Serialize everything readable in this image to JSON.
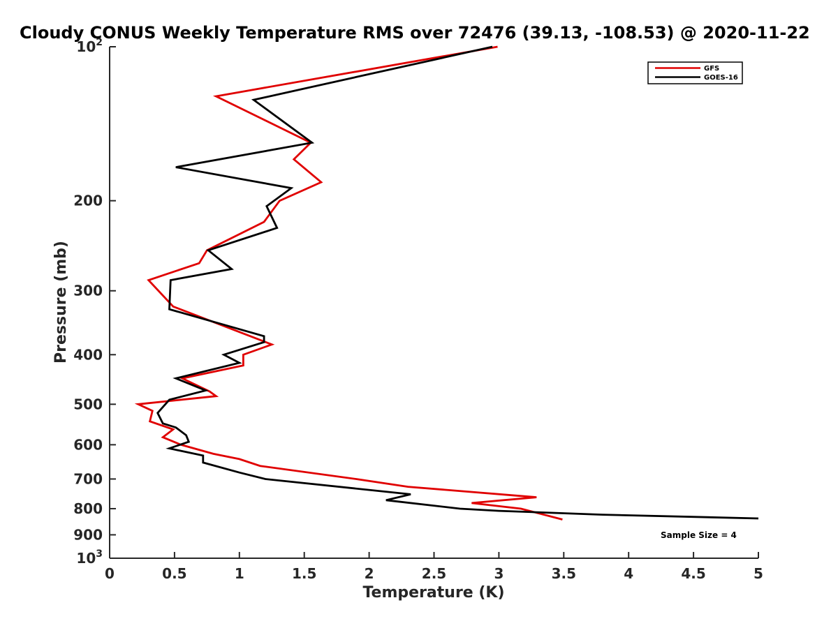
{
  "chart_data": {
    "type": "line",
    "title": "Cloudy CONUS Weekly Temperature RMS over 72476 (39.13, -108.53) @ 2020-11-22",
    "xlabel": "Temperature (K)",
    "ylabel": "Pressure (mb)",
    "xlim": [
      0,
      5
    ],
    "ylim": [
      100,
      1000
    ],
    "y_scale": "log",
    "y_reversed": true,
    "grid": false,
    "legend_position": "top-right",
    "x_ticks": [
      "0",
      "0.5",
      "1",
      "1.5",
      "2",
      "2.5",
      "3",
      "3.5",
      "4",
      "4.5",
      "5"
    ],
    "y_ticks": [
      {
        "value": 100,
        "label": "10",
        "sup": "2"
      },
      {
        "value": 200,
        "label": "200"
      },
      {
        "value": 300,
        "label": "300"
      },
      {
        "value": 400,
        "label": "400"
      },
      {
        "value": 500,
        "label": "500"
      },
      {
        "value": 600,
        "label": "600"
      },
      {
        "value": 700,
        "label": "700"
      },
      {
        "value": 800,
        "label": "800"
      },
      {
        "value": 900,
        "label": "900"
      },
      {
        "value": 1000,
        "label": "10",
        "sup": "3"
      }
    ],
    "annotation": "Sample Size = 4",
    "series": [
      {
        "name": "GFS",
        "color": "#e00000",
        "points": [
          [
            2.99,
            100
          ],
          [
            0.82,
            125
          ],
          [
            1.55,
            154
          ],
          [
            1.42,
            166
          ],
          [
            1.63,
            184
          ],
          [
            1.31,
            200
          ],
          [
            1.19,
            220
          ],
          [
            0.75,
            250
          ],
          [
            0.69,
            265
          ],
          [
            0.3,
            286
          ],
          [
            0.49,
            322
          ],
          [
            1.25,
            382
          ],
          [
            1.03,
            400
          ],
          [
            1.03,
            420
          ],
          [
            0.56,
            445
          ],
          [
            0.77,
            472
          ],
          [
            0.82,
            482
          ],
          [
            0.22,
            500
          ],
          [
            0.33,
            515
          ],
          [
            0.31,
            540
          ],
          [
            0.49,
            560
          ],
          [
            0.41,
            580
          ],
          [
            0.55,
            600
          ],
          [
            0.8,
            625
          ],
          [
            1.0,
            640
          ],
          [
            1.16,
            660
          ],
          [
            1.9,
            700
          ],
          [
            2.3,
            725
          ],
          [
            3.29,
            760
          ],
          [
            2.79,
            780
          ],
          [
            3.17,
            800
          ],
          [
            3.49,
            840
          ]
        ]
      },
      {
        "name": "GOES-16",
        "color": "#000000",
        "points": [
          [
            2.95,
            100
          ],
          [
            1.11,
            127
          ],
          [
            1.56,
            154
          ],
          [
            0.51,
            172
          ],
          [
            1.4,
            189
          ],
          [
            1.21,
            205
          ],
          [
            1.29,
            226
          ],
          [
            0.76,
            250
          ],
          [
            0.94,
            272
          ],
          [
            0.47,
            286
          ],
          [
            0.46,
            326
          ],
          [
            1.19,
            368
          ],
          [
            1.19,
            378
          ],
          [
            0.88,
            400
          ],
          [
            1.0,
            415
          ],
          [
            0.51,
            445
          ],
          [
            0.74,
            470
          ],
          [
            0.46,
            490
          ],
          [
            0.37,
            520
          ],
          [
            0.41,
            545
          ],
          [
            0.51,
            555
          ],
          [
            0.59,
            575
          ],
          [
            0.61,
            592
          ],
          [
            0.46,
            610
          ],
          [
            0.72,
            630
          ],
          [
            0.72,
            650
          ],
          [
            1.0,
            680
          ],
          [
            1.2,
            700
          ],
          [
            2.32,
            750
          ],
          [
            2.13,
            770
          ],
          [
            2.7,
            800
          ],
          [
            3.0,
            808
          ],
          [
            3.8,
            822
          ],
          [
            5.0,
            836
          ]
        ]
      }
    ]
  }
}
